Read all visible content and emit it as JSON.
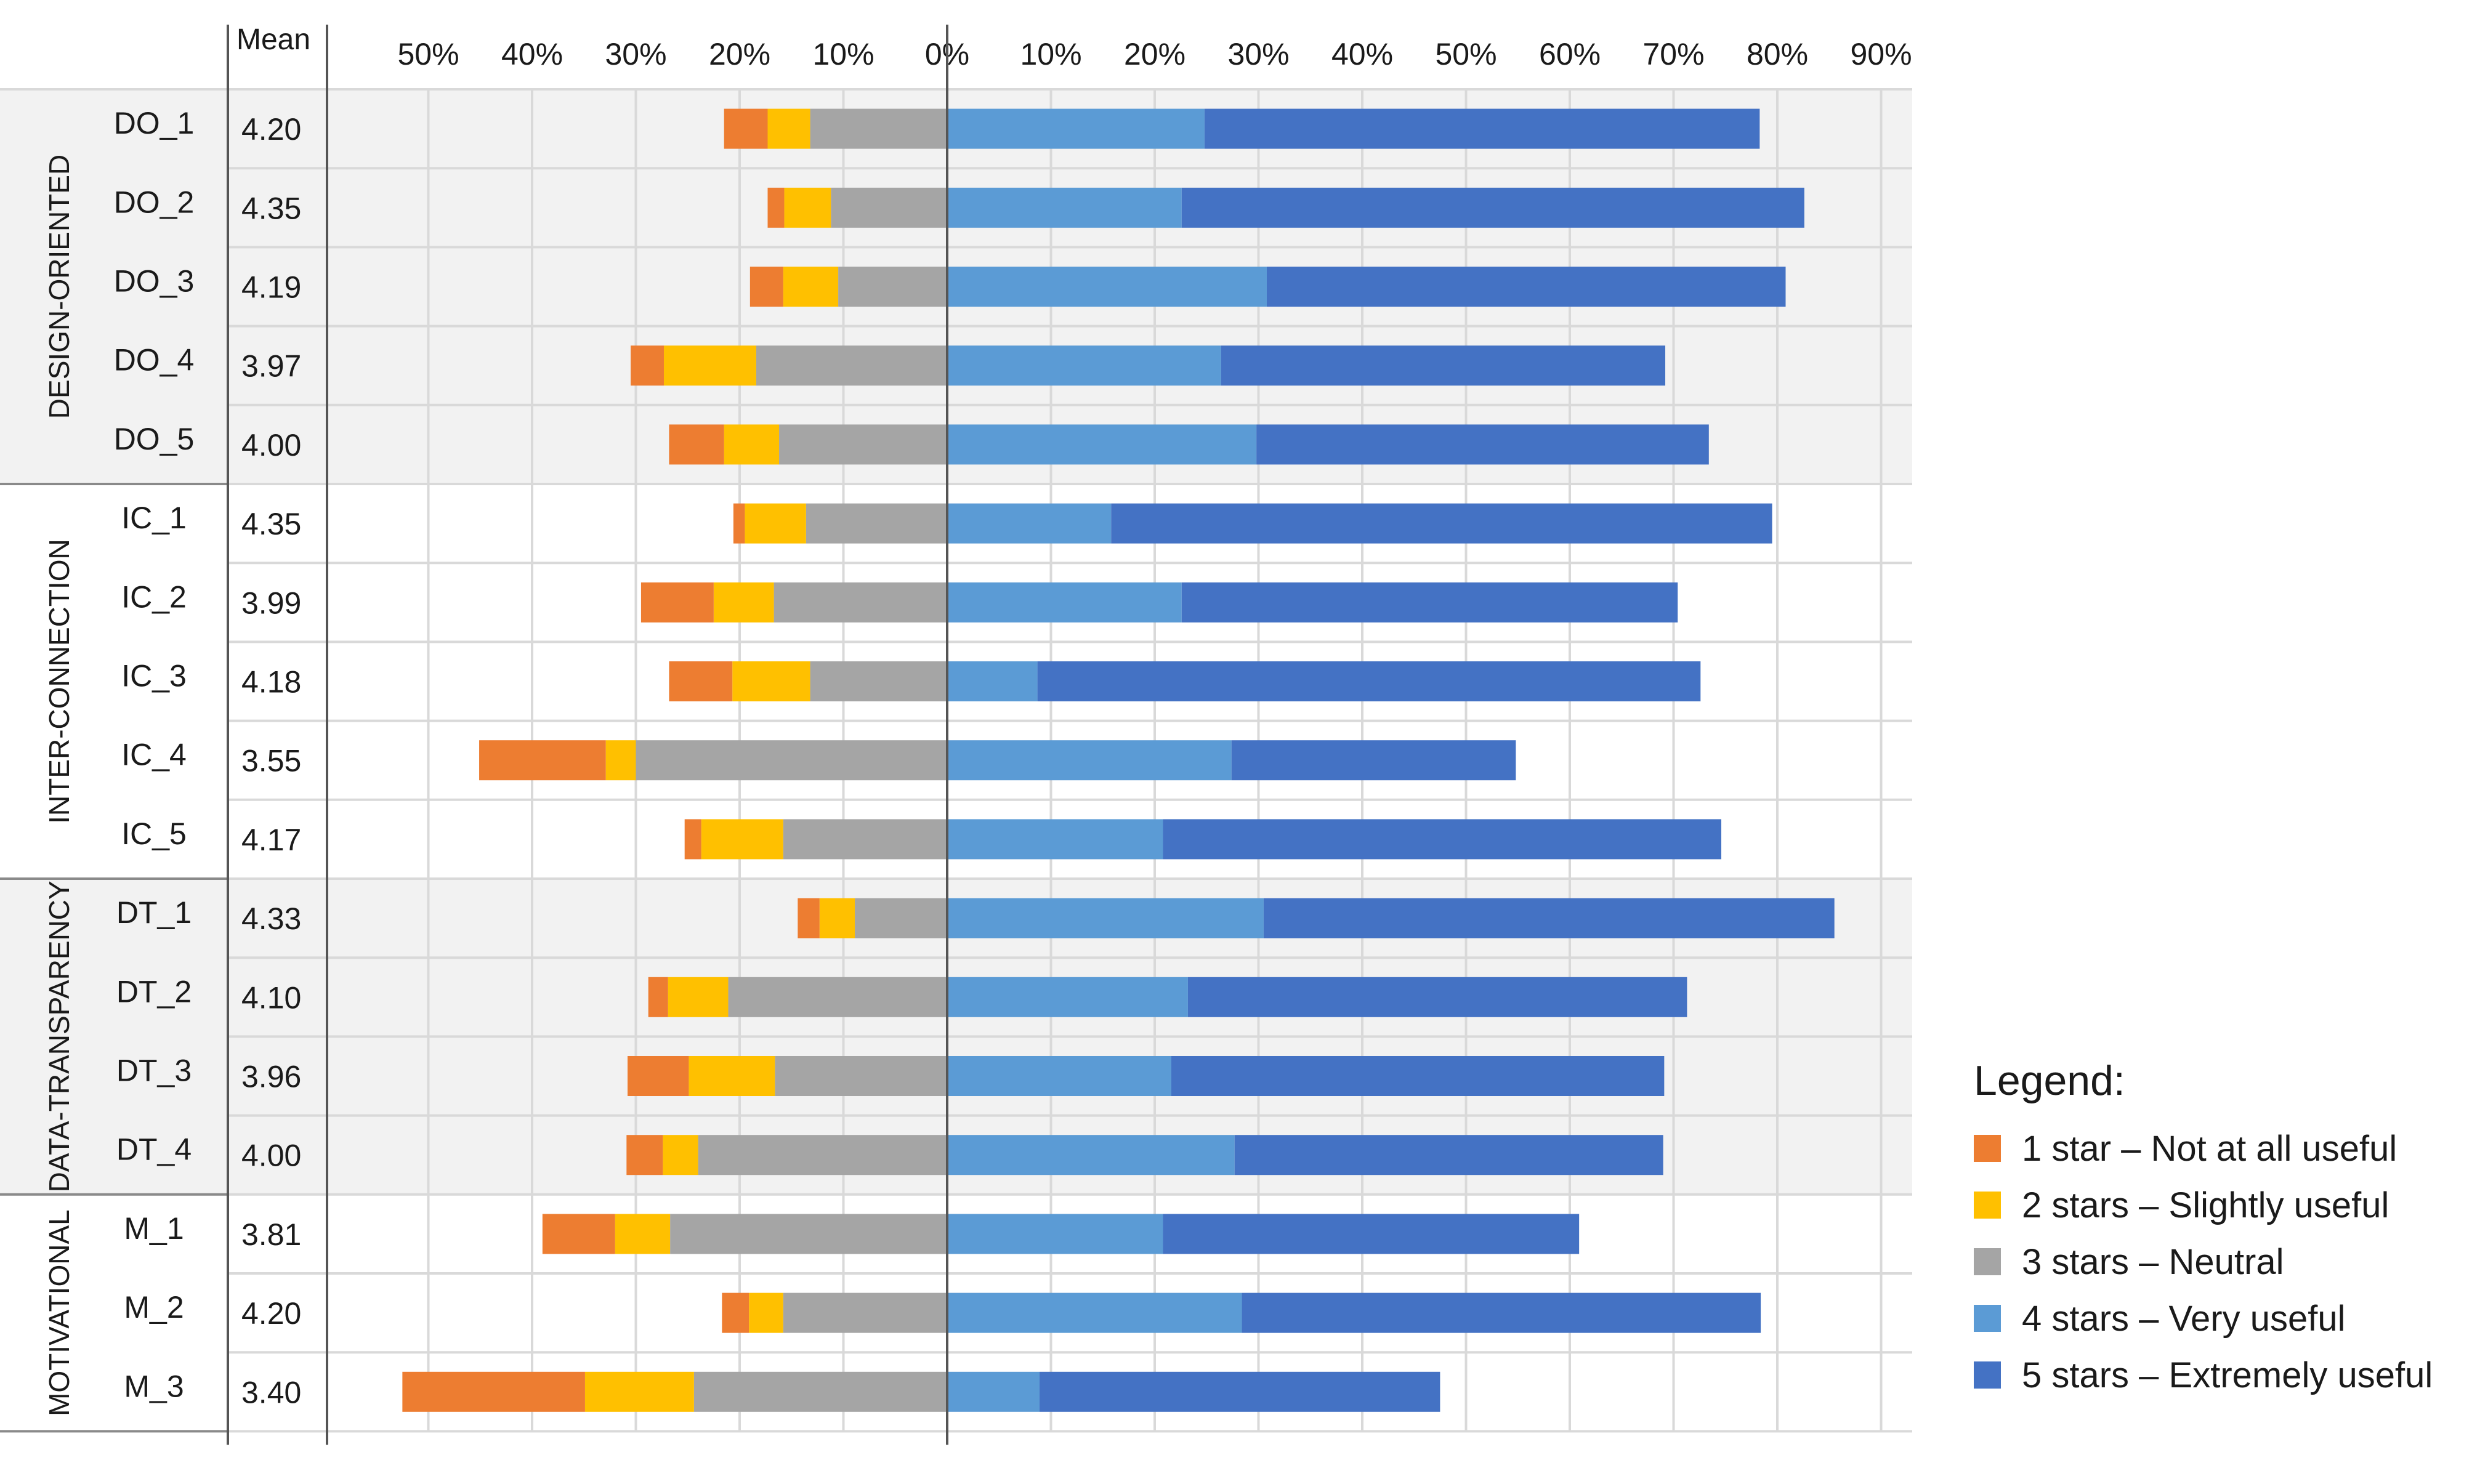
{
  "chart_data": {
    "type": "bar",
    "subtype": "diverging-stacked-horizontal",
    "mean_header": "Mean",
    "x_tick_labels": [
      "50%",
      "40%",
      "30%",
      "20%",
      "10%",
      "0%",
      "10%",
      "20%",
      "30%",
      "40%",
      "50%",
      "60%",
      "70%",
      "80%",
      "90%"
    ],
    "x_ticks": [
      -50,
      -40,
      -30,
      -20,
      -10,
      0,
      10,
      20,
      30,
      40,
      50,
      60,
      70,
      80,
      90
    ],
    "xlim": [
      -60,
      90
    ],
    "legend": {
      "title": "Legend:",
      "position": "right",
      "items": [
        {
          "label": "1 star – Not at all useful",
          "color": "#ED7D31"
        },
        {
          "label": "2 stars – Slightly useful",
          "color": "#FFC000"
        },
        {
          "label": "3 stars – Neutral",
          "color": "#A5A5A5"
        },
        {
          "label": "4 stars – Very useful",
          "color": "#5B9BD5"
        },
        {
          "label": "5 stars – Extremely useful",
          "color": "#4472C4"
        }
      ]
    },
    "groups": [
      {
        "name": "DESIGN-ORIENTED",
        "shaded": true,
        "rows": [
          {
            "label": "DO_1",
            "mean": "4.20",
            "one": 4.2,
            "two": 4.1,
            "three": 13.2,
            "four": 24.8,
            "five": 53.5
          },
          {
            "label": "DO_2",
            "mean": "4.35",
            "one": 1.6,
            "two": 4.5,
            "three": 11.2,
            "four": 22.6,
            "five": 60.0
          },
          {
            "label": "DO_3",
            "mean": "4.19",
            "one": 3.2,
            "two": 5.3,
            "three": 10.5,
            "four": 30.8,
            "five": 50.0
          },
          {
            "label": "DO_4",
            "mean": "3.97",
            "one": 3.2,
            "two": 8.9,
            "three": 18.4,
            "four": 26.4,
            "five": 42.8
          },
          {
            "label": "DO_5",
            "mean": "4.00",
            "one": 5.3,
            "two": 5.3,
            "three": 16.2,
            "four": 29.8,
            "five": 43.6
          }
        ]
      },
      {
        "name": "INTER-CONNECTION",
        "shaded": false,
        "rows": [
          {
            "label": "IC_1",
            "mean": "4.35",
            "one": 1.1,
            "two": 5.9,
            "three": 13.6,
            "four": 15.8,
            "five": 63.7
          },
          {
            "label": "IC_2",
            "mean": "3.99",
            "one": 7.0,
            "two": 5.8,
            "three": 16.7,
            "four": 22.6,
            "five": 47.8
          },
          {
            "label": "IC_3",
            "mean": "4.18",
            "one": 6.1,
            "two": 7.5,
            "three": 13.2,
            "four": 8.7,
            "five": 63.9
          },
          {
            "label": "IC_4",
            "mean": "3.55",
            "one": 12.2,
            "two": 2.9,
            "three": 30.0,
            "four": 27.4,
            "five": 27.4
          },
          {
            "label": "IC_5",
            "mean": "4.17",
            "one": 1.6,
            "two": 7.9,
            "three": 15.8,
            "four": 20.8,
            "five": 53.8
          }
        ]
      },
      {
        "name": "DATA-TRANSPARENCY",
        "shaded": true,
        "rows": [
          {
            "label": "DT_1",
            "mean": "4.33",
            "one": 2.1,
            "two": 3.4,
            "three": 8.9,
            "four": 30.5,
            "five": 55.0
          },
          {
            "label": "DT_2",
            "mean": "4.10",
            "one": 1.9,
            "two": 5.8,
            "three": 21.1,
            "four": 23.2,
            "five": 48.1
          },
          {
            "label": "DT_3",
            "mean": "3.96",
            "one": 5.9,
            "two": 8.3,
            "three": 16.6,
            "four": 21.6,
            "five": 47.5
          },
          {
            "label": "DT_4",
            "mean": "4.00",
            "one": 3.5,
            "two": 3.4,
            "three": 24.0,
            "four": 27.7,
            "five": 41.3
          }
        ]
      },
      {
        "name": "MOTIVATIONAL",
        "shaded": false,
        "rows": [
          {
            "label": "M_1",
            "mean": "3.81",
            "one": 7.0,
            "two": 5.3,
            "three": 26.7,
            "four": 20.8,
            "five": 40.1
          },
          {
            "label": "M_2",
            "mean": "4.20",
            "one": 2.6,
            "two": 3.3,
            "three": 15.8,
            "four": 28.4,
            "five": 50.0
          },
          {
            "label": "M_3",
            "mean": "3.40",
            "one": 17.6,
            "two": 10.5,
            "three": 24.4,
            "four": 8.9,
            "five": 38.6
          }
        ]
      }
    ]
  }
}
